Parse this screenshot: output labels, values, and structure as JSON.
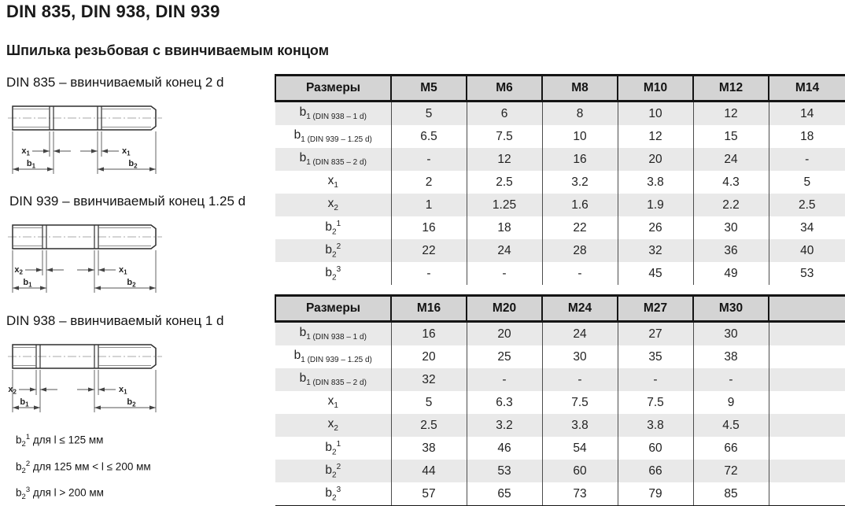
{
  "page": {
    "title": "DIN 835, DIN 938, DIN 939",
    "subtitle": "Шпилька резьбовая с ввинчиваемым концом"
  },
  "drawings": [
    {
      "caption": "DIN 835 – ввинчиваемый конец 2 d",
      "labels": {
        "left_x": {
          "base": "x",
          "sub": "1"
        },
        "right_x": {
          "base": "x",
          "sub": "1"
        },
        "left_b": {
          "base": "b",
          "sub": "1"
        },
        "right_b": {
          "base": "b",
          "sub": "2"
        }
      }
    },
    {
      "caption": "DIN 939 – ввинчиваемый конец 1.25 d",
      "labels": {
        "left_x": {
          "base": "x",
          "sub": "2"
        },
        "right_x": {
          "base": "x",
          "sub": "1"
        },
        "left_b": {
          "base": "b",
          "sub": "1"
        },
        "right_b": {
          "base": "b",
          "sub": "2"
        }
      }
    },
    {
      "caption": "DIN 938 – ввинчиваемый конец 1 d",
      "labels": {
        "left_x": {
          "base": "x",
          "sub": "2"
        },
        "right_x": {
          "base": "x",
          "sub": "1"
        },
        "left_b": {
          "base": "b",
          "sub": "1"
        },
        "right_b": {
          "base": "b",
          "sub": "2"
        }
      }
    }
  ],
  "footnotes": [
    {
      "base": "b",
      "sub": "2",
      "sup": "1",
      "text": " для l ≤ 125 мм"
    },
    {
      "base": "b",
      "sub": "2",
      "sup": "2",
      "text": " для 125 мм < l ≤ 200 мм"
    },
    {
      "base": "b",
      "sub": "2",
      "sup": "3",
      "text": " для l > 200 мм"
    }
  ],
  "tables": [
    {
      "header": [
        "Размеры",
        "M5",
        "M6",
        "M8",
        "M10",
        "M12",
        "M14"
      ],
      "rows": [
        {
          "label": {
            "base": "b",
            "sub": "1 (DIN 938 – 1 d)"
          },
          "values": [
            "5",
            "6",
            "8",
            "10",
            "12",
            "14"
          ]
        },
        {
          "label": {
            "base": "b",
            "sub": "1 (DIN 939 – 1.25 d)"
          },
          "values": [
            "6.5",
            "7.5",
            "10",
            "12",
            "15",
            "18"
          ]
        },
        {
          "label": {
            "base": "b",
            "sub": "1 (DIN 835 – 2 d)"
          },
          "values": [
            "-",
            "12",
            "16",
            "20",
            "24",
            "-"
          ]
        },
        {
          "label": {
            "base": "x",
            "sub": "1"
          },
          "values": [
            "2",
            "2.5",
            "3.2",
            "3.8",
            "4.3",
            "5"
          ]
        },
        {
          "label": {
            "base": "x",
            "sub": "2"
          },
          "values": [
            "1",
            "1.25",
            "1.6",
            "1.9",
            "2.2",
            "2.5"
          ]
        },
        {
          "label": {
            "base": "b",
            "sub": "2",
            "sup": "1"
          },
          "values": [
            "16",
            "18",
            "22",
            "26",
            "30",
            "34"
          ]
        },
        {
          "label": {
            "base": "b",
            "sub": "2",
            "sup": "2"
          },
          "values": [
            "22",
            "24",
            "28",
            "32",
            "36",
            "40"
          ]
        },
        {
          "label": {
            "base": "b",
            "sub": "2",
            "sup": "3"
          },
          "values": [
            "-",
            "-",
            "-",
            "45",
            "49",
            "53"
          ]
        }
      ]
    },
    {
      "header": [
        "Размеры",
        "M16",
        "M20",
        "M24",
        "M27",
        "M30",
        ""
      ],
      "rows": [
        {
          "label": {
            "base": "b",
            "sub": "1 (DIN 938 – 1 d)"
          },
          "values": [
            "16",
            "20",
            "24",
            "27",
            "30",
            ""
          ]
        },
        {
          "label": {
            "base": "b",
            "sub": "1 (DIN 939 – 1.25 d)"
          },
          "values": [
            "20",
            "25",
            "30",
            "35",
            "38",
            ""
          ]
        },
        {
          "label": {
            "base": "b",
            "sub": "1 (DIN 835 – 2 d)"
          },
          "values": [
            "32",
            "-",
            "-",
            "-",
            "-",
            ""
          ]
        },
        {
          "label": {
            "base": "x",
            "sub": "1"
          },
          "values": [
            "5",
            "6.3",
            "7.5",
            "7.5",
            "9",
            ""
          ]
        },
        {
          "label": {
            "base": "x",
            "sub": "2"
          },
          "values": [
            "2.5",
            "3.2",
            "3.8",
            "3.8",
            "4.5",
            ""
          ]
        },
        {
          "label": {
            "base": "b",
            "sub": "2",
            "sup": "1"
          },
          "values": [
            "38",
            "46",
            "54",
            "60",
            "66",
            ""
          ]
        },
        {
          "label": {
            "base": "b",
            "sub": "2",
            "sup": "2"
          },
          "values": [
            "44",
            "53",
            "60",
            "66",
            "72",
            ""
          ]
        },
        {
          "label": {
            "base": "b",
            "sub": "2",
            "sup": "3"
          },
          "values": [
            "57",
            "65",
            "73",
            "79",
            "85",
            ""
          ]
        }
      ]
    }
  ],
  "colors": {
    "header_bg": "#d4d4d4",
    "row_shade": "#e9e9e9",
    "border": "#151515"
  }
}
